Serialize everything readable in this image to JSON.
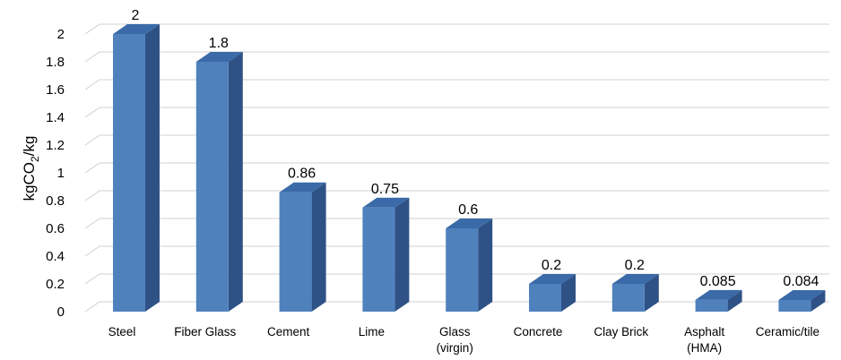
{
  "chart_data": {
    "type": "bar",
    "categories": [
      [
        "Steel"
      ],
      [
        "Fiber Glass"
      ],
      [
        "Cement"
      ],
      [
        "Lime"
      ],
      [
        "Glass",
        "(virgin)"
      ],
      [
        "Concrete"
      ],
      [
        "Clay Brick"
      ],
      [
        "Asphalt",
        "(HMA)"
      ],
      [
        "Ceramic/tile"
      ]
    ],
    "values": [
      2,
      1.8,
      0.86,
      0.75,
      0.6,
      0.2,
      0.2,
      0.085,
      0.084
    ],
    "data_labels": [
      "2",
      "1.8",
      "0.86",
      "0.75",
      "0.6",
      "0.2",
      "0.2",
      "0.085",
      "0.084"
    ],
    "ylabel": {
      "prefix": "kgCO",
      "subscript": "2",
      "suffix": "/kg"
    },
    "ylim": [
      0,
      2
    ],
    "yticks": [
      "0",
      "0.2",
      "0.4",
      "0.6",
      "0.8",
      "1",
      "1.2",
      "1.4",
      "1.6",
      "1.8",
      "2"
    ],
    "grid": true,
    "legend": "none",
    "bar_style": "3d",
    "colors": {
      "front": "#4f81bd",
      "side": "#2f5286",
      "top": "#3a6aa8",
      "grid": "#d0d0d0"
    }
  }
}
